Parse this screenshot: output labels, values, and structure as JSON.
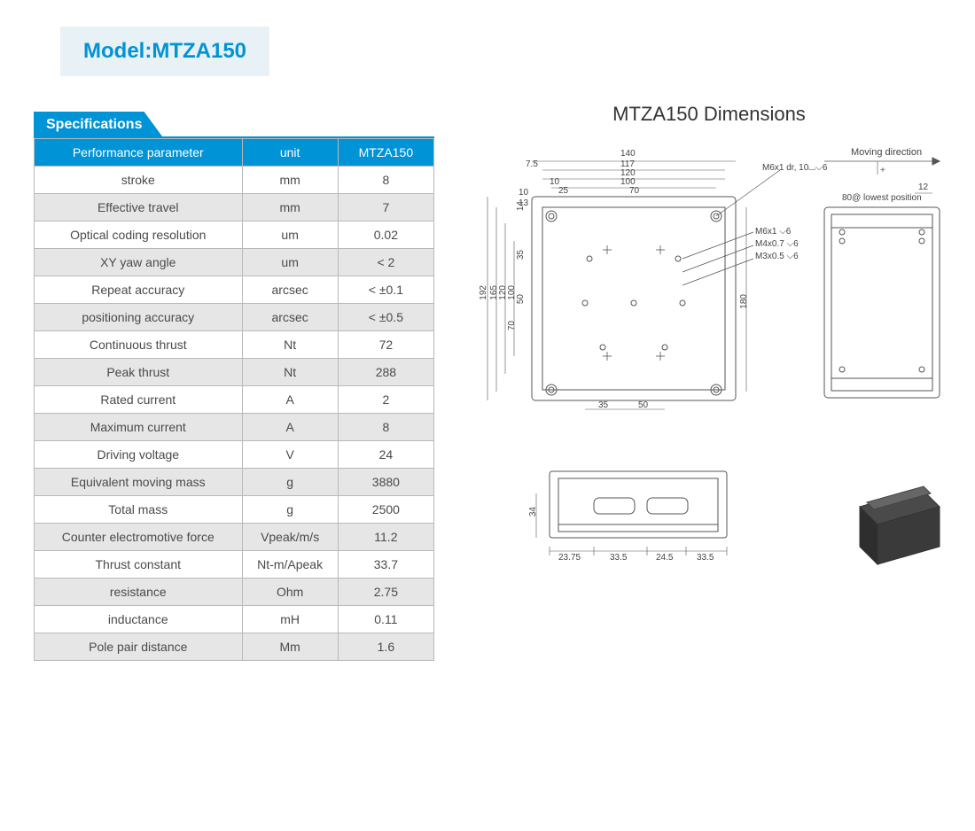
{
  "model_label": "Model:MTZA150",
  "specifications": {
    "tab_label": "Specifications",
    "columns": [
      "Performance parameter",
      "unit",
      "MTZA150"
    ],
    "rows": [
      [
        "stroke",
        "mm",
        "8"
      ],
      [
        "Effective travel",
        "mm",
        "7"
      ],
      [
        "Optical coding resolution",
        "um",
        "0.02"
      ],
      [
        "XY yaw angle",
        "um",
        "< 2"
      ],
      [
        "Repeat accuracy",
        "arcsec",
        "< ±0.1"
      ],
      [
        "positioning accuracy",
        "arcsec",
        "< ±0.5"
      ],
      [
        "Continuous thrust",
        "Nt",
        "72"
      ],
      [
        "Peak thrust",
        "Nt",
        "288"
      ],
      [
        "Rated current",
        "A",
        "2"
      ],
      [
        "Maximum current",
        "A",
        "8"
      ],
      [
        "Driving voltage",
        "V",
        "24"
      ],
      [
        "Equivalent moving mass",
        "g",
        "3880"
      ],
      [
        "Total mass",
        "g",
        "2500"
      ],
      [
        "Counter electromotive force",
        "Vpeak/m/s",
        "11.2"
      ],
      [
        "Thrust constant",
        "Nt-m/Apeak",
        "33.7"
      ],
      [
        "resistance",
        "Ohm",
        "2.75"
      ],
      [
        "inductance",
        "mH",
        "0.11"
      ],
      [
        "Pole pair distance",
        "Mm",
        "1.6"
      ]
    ],
    "header_bg": "#0093d6",
    "header_color": "#ffffff",
    "border_color": "#b9b9b9",
    "row_alt_bg": "#e6e6e6",
    "text_color": "#4a4a4a"
  },
  "dimensions": {
    "title": "MTZA150 Dimensions",
    "top_view": {
      "outer_w": 260,
      "outer_h": 255,
      "top_dims": {
        "full": "140",
        "a": "7.5",
        "b": "117",
        "c": "120",
        "d": "10",
        "e": "100",
        "f": "25",
        "g": "70"
      },
      "left_dims": {
        "full": "192",
        "a": "165",
        "b": "120",
        "c": "100",
        "d": "70",
        "e": "50",
        "f": "35",
        "g": "14",
        "h": "13",
        "i": "10"
      },
      "right_dim": "180",
      "bottom_dims": {
        "a": "35",
        "b": "50"
      },
      "callouts": [
        "M6x1  dr, 10⌴⌵6",
        "M6x1 ⌵6",
        "M4x0.7 ⌵6",
        "M3x0.5 ⌵6"
      ]
    },
    "side_view": {
      "label_top": "Moving direction",
      "label_note": "80@ lowest position",
      "dim": "12"
    },
    "front_view": {
      "left_dim": "34",
      "bottom_dims": [
        "23.75",
        "33.5",
        "24.5",
        "33.5"
      ]
    },
    "line_color": "#555555",
    "text_color": "#444444"
  }
}
